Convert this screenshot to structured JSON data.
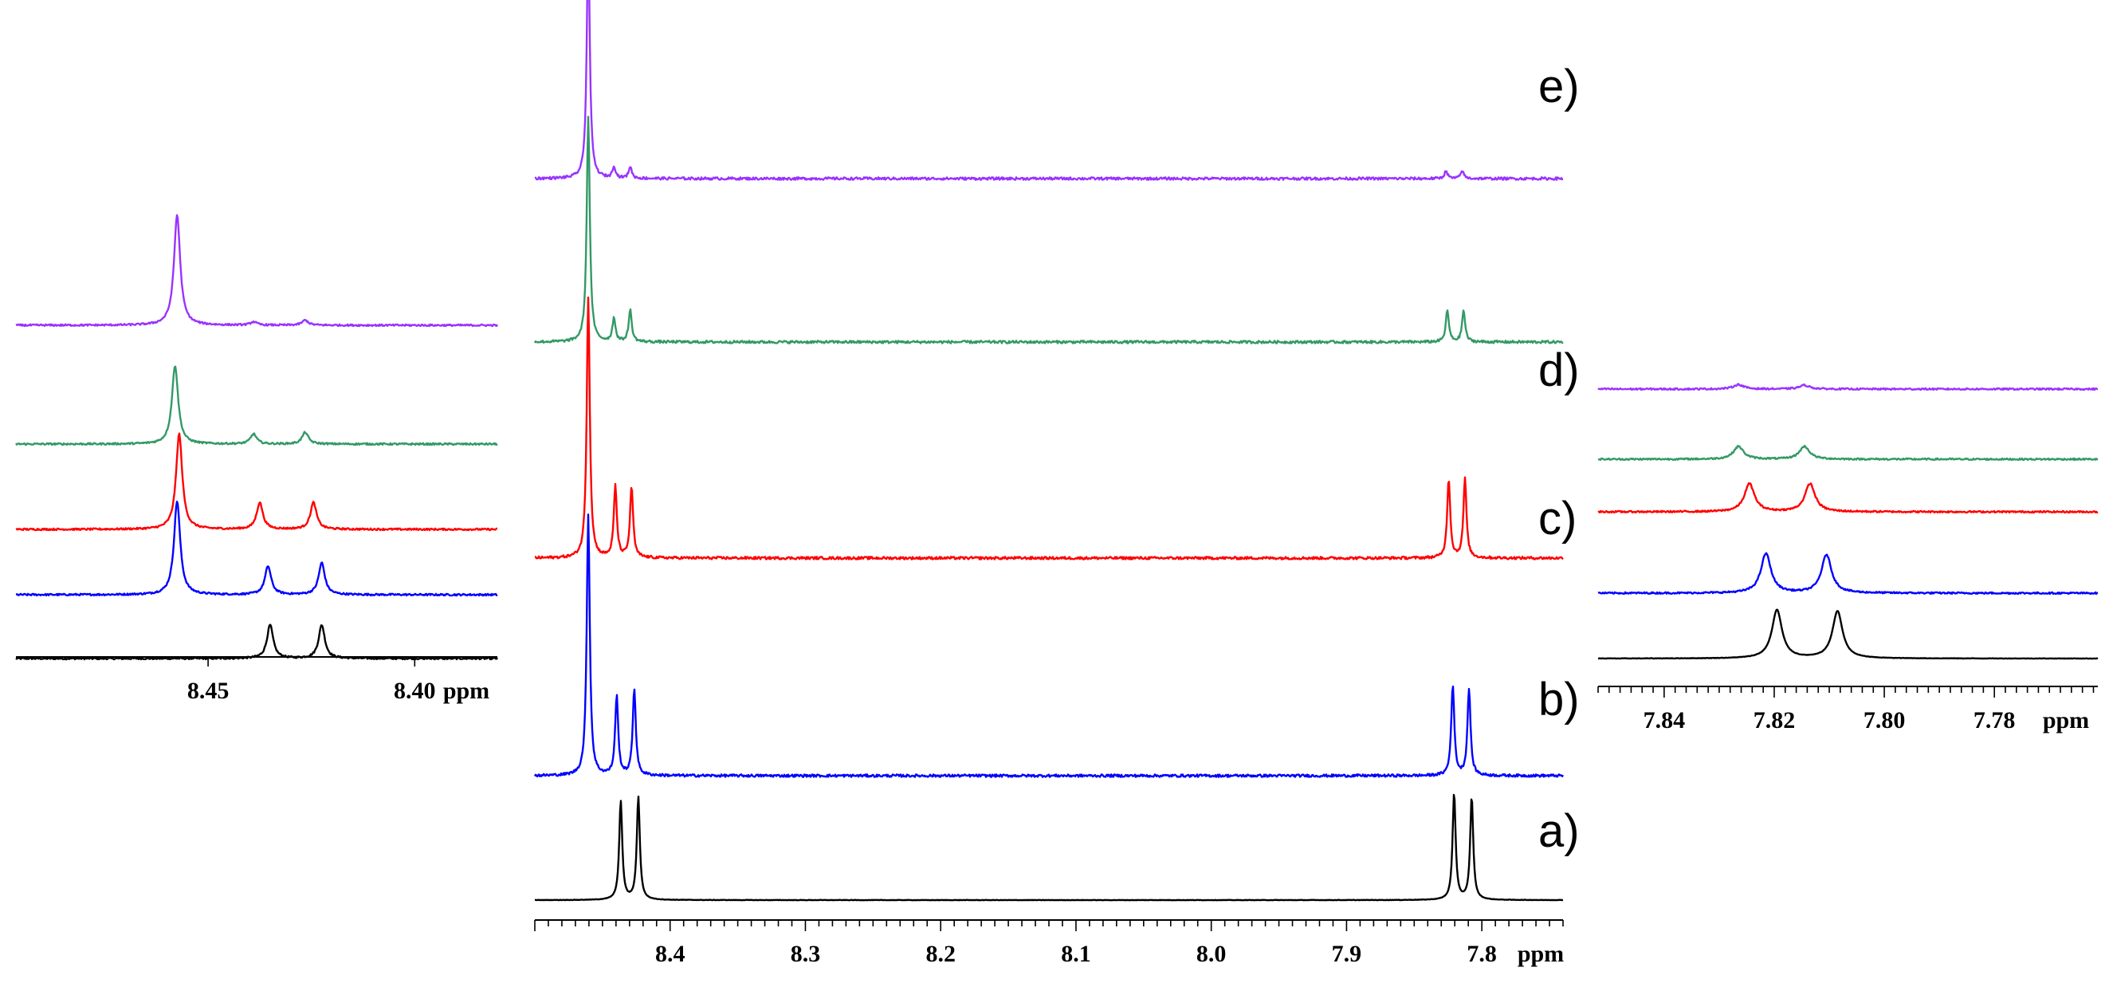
{
  "colors": {
    "a": "#000000",
    "b": "#0000ff",
    "c": "#ff0000",
    "d": "#339966",
    "e": "#9933ff"
  },
  "chart_data": [
    {
      "type": "line",
      "panel": "left-inset",
      "xlabel": "ppm",
      "xlim": [
        8.4965,
        8.38
      ],
      "xticks": [
        "8.45",
        "8.40"
      ],
      "stacked": true,
      "series": [
        {
          "trace": "a",
          "color": "#000000",
          "peaks": [
            {
              "ppm": 8.435,
              "height": 0.2
            },
            {
              "ppm": 8.4225,
              "height": 0.2
            }
          ]
        },
        {
          "trace": "b",
          "color": "#0000ff",
          "peaks": [
            {
              "ppm": 8.4575,
              "height": 0.56
            },
            {
              "ppm": 8.4355,
              "height": 0.17
            },
            {
              "ppm": 8.4225,
              "height": 0.19
            }
          ]
        },
        {
          "trace": "c",
          "color": "#ff0000",
          "peaks": [
            {
              "ppm": 8.457,
              "height": 0.57
            },
            {
              "ppm": 8.4375,
              "height": 0.16
            },
            {
              "ppm": 8.4245,
              "height": 0.16
            }
          ]
        },
        {
          "trace": "d",
          "color": "#339966",
          "peaks": [
            {
              "ppm": 8.458,
              "height": 0.47
            },
            {
              "ppm": 8.439,
              "height": 0.06
            },
            {
              "ppm": 8.4265,
              "height": 0.07
            }
          ]
        },
        {
          "trace": "e",
          "color": "#9933ff",
          "peaks": [
            {
              "ppm": 8.4575,
              "height": 0.66
            },
            {
              "ppm": 8.439,
              "height": 0.02
            },
            {
              "ppm": 8.4265,
              "height": 0.03
            }
          ]
        }
      ]
    },
    {
      "type": "line",
      "panel": "main",
      "xlabel": "ppm",
      "xlim": [
        8.5,
        7.74
      ],
      "xticks": [
        "8.4",
        "8.3",
        "8.2",
        "8.1",
        "8.0",
        "7.9",
        "7.8"
      ],
      "stacked": true,
      "trace_labels": [
        "a)",
        "b)",
        "c)",
        "d)",
        "e)"
      ],
      "series": [
        {
          "trace": "a",
          "label": "a)",
          "color": "#000000",
          "peaks": [
            {
              "ppm": 8.4365,
              "height": 0.5
            },
            {
              "ppm": 8.4235,
              "height": 0.52
            },
            {
              "ppm": 7.8205,
              "height": 0.54
            },
            {
              "ppm": 7.8075,
              "height": 0.52
            }
          ]
        },
        {
          "trace": "b",
          "label": "b)",
          "color": "#0000ff",
          "peaks": [
            {
              "ppm": 8.4605,
              "height": 1.32
            },
            {
              "ppm": 8.4395,
              "height": 0.4
            },
            {
              "ppm": 8.4265,
              "height": 0.44
            },
            {
              "ppm": 7.8215,
              "height": 0.46
            },
            {
              "ppm": 7.8095,
              "height": 0.44
            }
          ]
        },
        {
          "trace": "c",
          "label": "c)",
          "color": "#ff0000",
          "peaks": [
            {
              "ppm": 8.4605,
              "height": 1.32
            },
            {
              "ppm": 8.4405,
              "height": 0.36
            },
            {
              "ppm": 8.4285,
              "height": 0.36
            },
            {
              "ppm": 7.8245,
              "height": 0.4
            },
            {
              "ppm": 7.8125,
              "height": 0.4
            }
          ]
        },
        {
          "trace": "d",
          "label": "d)",
          "color": "#339966",
          "peaks": [
            {
              "ppm": 8.4605,
              "height": 1.14
            },
            {
              "ppm": 8.4415,
              "height": 0.12
            },
            {
              "ppm": 8.4295,
              "height": 0.16
            },
            {
              "ppm": 7.8255,
              "height": 0.16
            },
            {
              "ppm": 7.8135,
              "height": 0.16
            }
          ]
        },
        {
          "trace": "e",
          "label": "e)",
          "color": "#9933ff",
          "peaks": [
            {
              "ppm": 8.4605,
              "height": 1.2
            },
            {
              "ppm": 8.4415,
              "height": 0.06
            },
            {
              "ppm": 8.4295,
              "height": 0.06
            },
            {
              "ppm": 7.8265,
              "height": 0.04
            },
            {
              "ppm": 7.8145,
              "height": 0.04
            }
          ]
        }
      ]
    },
    {
      "type": "line",
      "panel": "right-inset",
      "xlabel": "ppm",
      "xlim": [
        7.852,
        7.7612
      ],
      "xticks": [
        "7.84",
        "7.82",
        "7.80",
        "7.78"
      ],
      "stacked": true,
      "series": [
        {
          "trace": "a",
          "color": "#000000",
          "peaks": [
            {
              "ppm": 7.8195,
              "height": 0.38
            },
            {
              "ppm": 7.8085,
              "height": 0.37
            }
          ]
        },
        {
          "trace": "b",
          "color": "#0000ff",
          "peaks": [
            {
              "ppm": 7.8215,
              "height": 0.31
            },
            {
              "ppm": 7.8105,
              "height": 0.3
            }
          ]
        },
        {
          "trace": "c",
          "color": "#ff0000",
          "peaks": [
            {
              "ppm": 7.8245,
              "height": 0.22
            },
            {
              "ppm": 7.8135,
              "height": 0.22
            }
          ]
        },
        {
          "trace": "d",
          "color": "#339966",
          "peaks": [
            {
              "ppm": 7.8265,
              "height": 0.1
            },
            {
              "ppm": 7.8145,
              "height": 0.1
            }
          ]
        },
        {
          "trace": "e",
          "color": "#9933ff",
          "peaks": [
            {
              "ppm": 7.8265,
              "height": 0.035
            },
            {
              "ppm": 7.8145,
              "height": 0.03
            }
          ]
        }
      ]
    }
  ]
}
